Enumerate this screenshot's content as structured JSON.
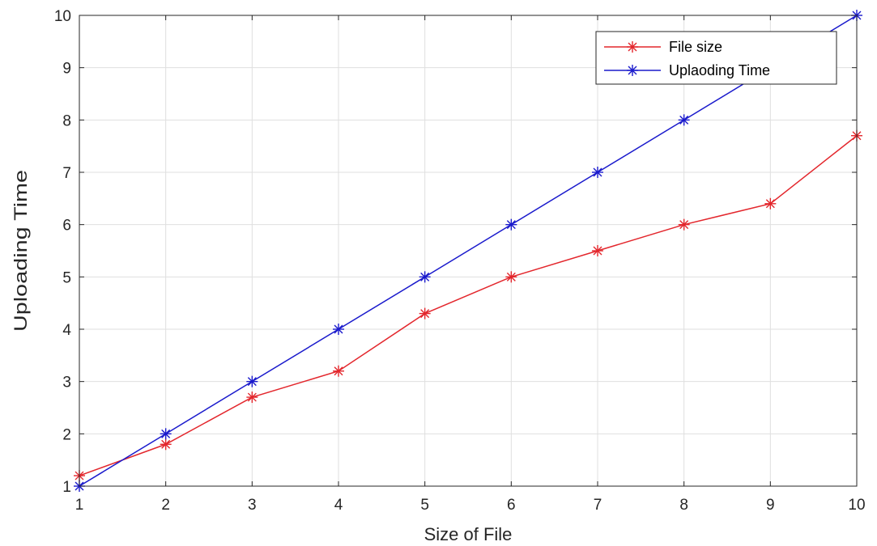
{
  "chart_data": {
    "type": "line",
    "xlabel": "Size of File",
    "ylabel": "Uploading Time",
    "xlim": [
      1,
      10
    ],
    "ylim": [
      1,
      10
    ],
    "x_ticks": [
      1,
      2,
      3,
      4,
      5,
      6,
      7,
      8,
      9,
      10
    ],
    "y_ticks": [
      1,
      2,
      3,
      4,
      5,
      6,
      7,
      8,
      9,
      10
    ],
    "grid": true,
    "legend_position": "top-right",
    "marker": "asterisk",
    "x": [
      1,
      2,
      3,
      4,
      5,
      6,
      7,
      8,
      9,
      10
    ],
    "series": [
      {
        "name": "File size",
        "color": "#e3262c",
        "values": [
          1.2,
          1.8,
          2.7,
          3.2,
          4.3,
          5.0,
          5.5,
          6.0,
          6.4,
          7.7
        ]
      },
      {
        "name": "Uplaoding Time",
        "color": "#1a1acc",
        "values": [
          1,
          2,
          3,
          4,
          5,
          6,
          7,
          8,
          9,
          10
        ]
      }
    ]
  }
}
